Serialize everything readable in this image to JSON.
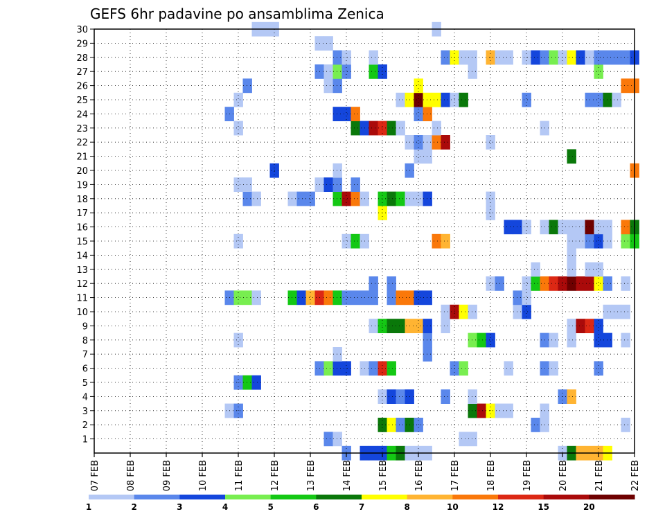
{
  "chart_data": {
    "type": "heatmap",
    "title": "GEFS 6hr padavine po ansamblima Zenica",
    "x_tick_labels": [
      "07 FEB",
      "08 FEB",
      "09 FEB",
      "10 FEB",
      "11 FEB",
      "12 FEB",
      "13 FEB",
      "14 FEB",
      "15 FEB",
      "16 FEB",
      "17 FEB",
      "18 FEB",
      "19 FEB",
      "20 FEB",
      "21 FEB",
      "22 FEB"
    ],
    "y_tick_labels": [
      "1",
      "2",
      "3",
      "4",
      "5",
      "6",
      "7",
      "8",
      "9",
      "10",
      "11",
      "12",
      "13",
      "14",
      "15",
      "16",
      "17",
      "18",
      "19",
      "20",
      "21",
      "22",
      "23",
      "24",
      "25",
      "26",
      "27",
      "28",
      "29",
      "30"
    ],
    "x_unit": "6-hour step from 07 FEB",
    "y_unit": "ensemble member",
    "xlim": [
      0,
      60
    ],
    "ylim": [
      0,
      30
    ],
    "grid": true,
    "colorbar": {
      "tick_labels": [
        "1",
        "2",
        "3",
        "4",
        "5",
        "6",
        "7",
        "8",
        "10",
        "12",
        "15",
        "20"
      ],
      "colors": [
        "#b4c8f5",
        "#5a87eb",
        "#1446dc",
        "#78ee50",
        "#14c814",
        "#0a780a",
        "#ffff00",
        "#ffb432",
        "#fa780a",
        "#dc2814",
        "#aa0a0a",
        "#6e0000"
      ]
    },
    "cells": [
      [
        28,
        0,
        1
      ],
      [
        30,
        0,
        2
      ],
      [
        31,
        0,
        2
      ],
      [
        32,
        0,
        2
      ],
      [
        33,
        0,
        4
      ],
      [
        34,
        0,
        5
      ],
      [
        35,
        0,
        0
      ],
      [
        36,
        0,
        0
      ],
      [
        37,
        0,
        0
      ],
      [
        52,
        0,
        0
      ],
      [
        53,
        0,
        5
      ],
      [
        54,
        0,
        7
      ],
      [
        55,
        0,
        7
      ],
      [
        56,
        0,
        7
      ],
      [
        57,
        0,
        6
      ],
      [
        26,
        1,
        1
      ],
      [
        27,
        1,
        0
      ],
      [
        41,
        1,
        0
      ],
      [
        42,
        1,
        0
      ],
      [
        32,
        2,
        5
      ],
      [
        33,
        2,
        6
      ],
      [
        34,
        2,
        1
      ],
      [
        35,
        2,
        5
      ],
      [
        36,
        2,
        1
      ],
      [
        49,
        2,
        1
      ],
      [
        50,
        2,
        0
      ],
      [
        59,
        2,
        0
      ],
      [
        15,
        3,
        0
      ],
      [
        16,
        3,
        1
      ],
      [
        42,
        3,
        5
      ],
      [
        43,
        3,
        10
      ],
      [
        44,
        3,
        6
      ],
      [
        45,
        3,
        0
      ],
      [
        46,
        3,
        0
      ],
      [
        50,
        3,
        0
      ],
      [
        32,
        4,
        0
      ],
      [
        33,
        4,
        2
      ],
      [
        34,
        4,
        1
      ],
      [
        35,
        4,
        2
      ],
      [
        39,
        4,
        1
      ],
      [
        42,
        4,
        0
      ],
      [
        52,
        4,
        1
      ],
      [
        53,
        4,
        7
      ],
      [
        16,
        5,
        1
      ],
      [
        17,
        5,
        4
      ],
      [
        18,
        5,
        2
      ],
      [
        25,
        6,
        1
      ],
      [
        26,
        6,
        3
      ],
      [
        27,
        6,
        2
      ],
      [
        28,
        6,
        2
      ],
      [
        30,
        6,
        0
      ],
      [
        31,
        6,
        1
      ],
      [
        32,
        6,
        9
      ],
      [
        33,
        6,
        4
      ],
      [
        40,
        6,
        1
      ],
      [
        41,
        6,
        3
      ],
      [
        46,
        6,
        0
      ],
      [
        50,
        6,
        1
      ],
      [
        51,
        6,
        0
      ],
      [
        56,
        6,
        1
      ],
      [
        27,
        7,
        0
      ],
      [
        37,
        7,
        1
      ],
      [
        16,
        8,
        0
      ],
      [
        37,
        8,
        1
      ],
      [
        42,
        8,
        3
      ],
      [
        43,
        8,
        4
      ],
      [
        44,
        8,
        2
      ],
      [
        50,
        8,
        1
      ],
      [
        51,
        8,
        0
      ],
      [
        53,
        8,
        0
      ],
      [
        56,
        8,
        2
      ],
      [
        57,
        8,
        2
      ],
      [
        59,
        8,
        0
      ],
      [
        31,
        9,
        0
      ],
      [
        32,
        9,
        4
      ],
      [
        33,
        9,
        5
      ],
      [
        34,
        9,
        5
      ],
      [
        35,
        9,
        7
      ],
      [
        36,
        9,
        7
      ],
      [
        37,
        9,
        2
      ],
      [
        39,
        9,
        0
      ],
      [
        53,
        9,
        0
      ],
      [
        54,
        9,
        10
      ],
      [
        55,
        9,
        9
      ],
      [
        56,
        9,
        2
      ],
      [
        39,
        10,
        0
      ],
      [
        40,
        10,
        10
      ],
      [
        41,
        10,
        6
      ],
      [
        42,
        10,
        0
      ],
      [
        47,
        10,
        0
      ],
      [
        48,
        10,
        2
      ],
      [
        57,
        10,
        0
      ],
      [
        58,
        10,
        0
      ],
      [
        59,
        10,
        0
      ],
      [
        15,
        11,
        1
      ],
      [
        16,
        11,
        3
      ],
      [
        17,
        11,
        3
      ],
      [
        18,
        11,
        0
      ],
      [
        22,
        11,
        4
      ],
      [
        23,
        11,
        2
      ],
      [
        24,
        11,
        7
      ],
      [
        25,
        11,
        9
      ],
      [
        26,
        11,
        8
      ],
      [
        27,
        11,
        4
      ],
      [
        28,
        11,
        1
      ],
      [
        29,
        11,
        1
      ],
      [
        30,
        11,
        1
      ],
      [
        31,
        11,
        1
      ],
      [
        33,
        11,
        1
      ],
      [
        34,
        11,
        8
      ],
      [
        35,
        11,
        8
      ],
      [
        36,
        11,
        2
      ],
      [
        37,
        11,
        2
      ],
      [
        47,
        11,
        1
      ],
      [
        48,
        11,
        0
      ],
      [
        31,
        12,
        1
      ],
      [
        33,
        12,
        1
      ],
      [
        44,
        12,
        0
      ],
      [
        45,
        12,
        1
      ],
      [
        48,
        12,
        0
      ],
      [
        49,
        12,
        4
      ],
      [
        50,
        12,
        8
      ],
      [
        51,
        12,
        9
      ],
      [
        52,
        12,
        10
      ],
      [
        53,
        12,
        11
      ],
      [
        54,
        12,
        10
      ],
      [
        55,
        12,
        10
      ],
      [
        56,
        12,
        6
      ],
      [
        57,
        12,
        1
      ],
      [
        59,
        12,
        0
      ],
      [
        49,
        13,
        0
      ],
      [
        53,
        13,
        0
      ],
      [
        55,
        13,
        0
      ],
      [
        56,
        13,
        0
      ],
      [
        53,
        14,
        0
      ],
      [
        16,
        15,
        0
      ],
      [
        28,
        15,
        0
      ],
      [
        29,
        15,
        4
      ],
      [
        30,
        15,
        0
      ],
      [
        38,
        15,
        8
      ],
      [
        39,
        15,
        7
      ],
      [
        53,
        15,
        0
      ],
      [
        54,
        15,
        0
      ],
      [
        55,
        15,
        1
      ],
      [
        56,
        15,
        2
      ],
      [
        57,
        15,
        0
      ],
      [
        59,
        15,
        3
      ],
      [
        60,
        15,
        4
      ],
      [
        46,
        16,
        2
      ],
      [
        47,
        16,
        2
      ],
      [
        48,
        16,
        0
      ],
      [
        50,
        16,
        0
      ],
      [
        51,
        16,
        5
      ],
      [
        52,
        16,
        0
      ],
      [
        53,
        16,
        0
      ],
      [
        54,
        16,
        0
      ],
      [
        55,
        16,
        11
      ],
      [
        56,
        16,
        0
      ],
      [
        57,
        16,
        0
      ],
      [
        59,
        16,
        8
      ],
      [
        60,
        16,
        5
      ],
      [
        32,
        17,
        6
      ],
      [
        44,
        17,
        0
      ],
      [
        17,
        18,
        1
      ],
      [
        18,
        18,
        0
      ],
      [
        22,
        18,
        0
      ],
      [
        23,
        18,
        1
      ],
      [
        24,
        18,
        1
      ],
      [
        27,
        18,
        4
      ],
      [
        28,
        18,
        10
      ],
      [
        29,
        18,
        8
      ],
      [
        30,
        18,
        0
      ],
      [
        32,
        18,
        4
      ],
      [
        33,
        18,
        5
      ],
      [
        34,
        18,
        4
      ],
      [
        35,
        18,
        0
      ],
      [
        36,
        18,
        0
      ],
      [
        37,
        18,
        2
      ],
      [
        44,
        18,
        0
      ],
      [
        16,
        19,
        0
      ],
      [
        17,
        19,
        0
      ],
      [
        25,
        19,
        0
      ],
      [
        26,
        19,
        2
      ],
      [
        27,
        19,
        1
      ],
      [
        29,
        19,
        1
      ],
      [
        20,
        20,
        2
      ],
      [
        27,
        20,
        0
      ],
      [
        35,
        20,
        1
      ],
      [
        60,
        20,
        8
      ],
      [
        36,
        21,
        0
      ],
      [
        37,
        21,
        0
      ],
      [
        53,
        21,
        5
      ],
      [
        35,
        22,
        0
      ],
      [
        36,
        22,
        1
      ],
      [
        37,
        22,
        0
      ],
      [
        38,
        22,
        8
      ],
      [
        39,
        22,
        10
      ],
      [
        44,
        22,
        0
      ],
      [
        16,
        23,
        0
      ],
      [
        29,
        23,
        5
      ],
      [
        30,
        23,
        2
      ],
      [
        31,
        23,
        10
      ],
      [
        32,
        23,
        9
      ],
      [
        33,
        23,
        5
      ],
      [
        34,
        23,
        0
      ],
      [
        38,
        23,
        0
      ],
      [
        50,
        23,
        0
      ],
      [
        15,
        24,
        1
      ],
      [
        27,
        24,
        2
      ],
      [
        28,
        24,
        2
      ],
      [
        29,
        24,
        8
      ],
      [
        36,
        24,
        1
      ],
      [
        37,
        24,
        8
      ],
      [
        16,
        25,
        0
      ],
      [
        34,
        25,
        0
      ],
      [
        35,
        25,
        6
      ],
      [
        36,
        25,
        11
      ],
      [
        37,
        25,
        6
      ],
      [
        38,
        25,
        6
      ],
      [
        39,
        25,
        2
      ],
      [
        40,
        25,
        0
      ],
      [
        41,
        25,
        5
      ],
      [
        48,
        25,
        1
      ],
      [
        55,
        25,
        1
      ],
      [
        56,
        25,
        1
      ],
      [
        57,
        25,
        5
      ],
      [
        58,
        25,
        0
      ],
      [
        17,
        26,
        1
      ],
      [
        26,
        26,
        0
      ],
      [
        27,
        26,
        1
      ],
      [
        36,
        26,
        6
      ],
      [
        59,
        26,
        8
      ],
      [
        60,
        26,
        8
      ],
      [
        25,
        27,
        1
      ],
      [
        26,
        27,
        0
      ],
      [
        27,
        27,
        3
      ],
      [
        28,
        27,
        1
      ],
      [
        31,
        27,
        4
      ],
      [
        32,
        27,
        2
      ],
      [
        42,
        27,
        0
      ],
      [
        56,
        27,
        3
      ],
      [
        27,
        28,
        1
      ],
      [
        28,
        28,
        0
      ],
      [
        31,
        28,
        0
      ],
      [
        39,
        28,
        1
      ],
      [
        40,
        28,
        6
      ],
      [
        41,
        28,
        0
      ],
      [
        42,
        28,
        0
      ],
      [
        44,
        28,
        7
      ],
      [
        45,
        28,
        0
      ],
      [
        46,
        28,
        0
      ],
      [
        48,
        28,
        0
      ],
      [
        49,
        28,
        2
      ],
      [
        50,
        28,
        1
      ],
      [
        51,
        28,
        3
      ],
      [
        52,
        28,
        0
      ],
      [
        53,
        28,
        6
      ],
      [
        54,
        28,
        2
      ],
      [
        55,
        28,
        0
      ],
      [
        56,
        28,
        1
      ],
      [
        57,
        28,
        1
      ],
      [
        58,
        28,
        1
      ],
      [
        59,
        28,
        1
      ],
      [
        60,
        28,
        2
      ],
      [
        25,
        29,
        0
      ],
      [
        26,
        29,
        0
      ],
      [
        18,
        30,
        0
      ],
      [
        19,
        30,
        0
      ],
      [
        20,
        30,
        0
      ],
      [
        38,
        30,
        0
      ]
    ]
  }
}
